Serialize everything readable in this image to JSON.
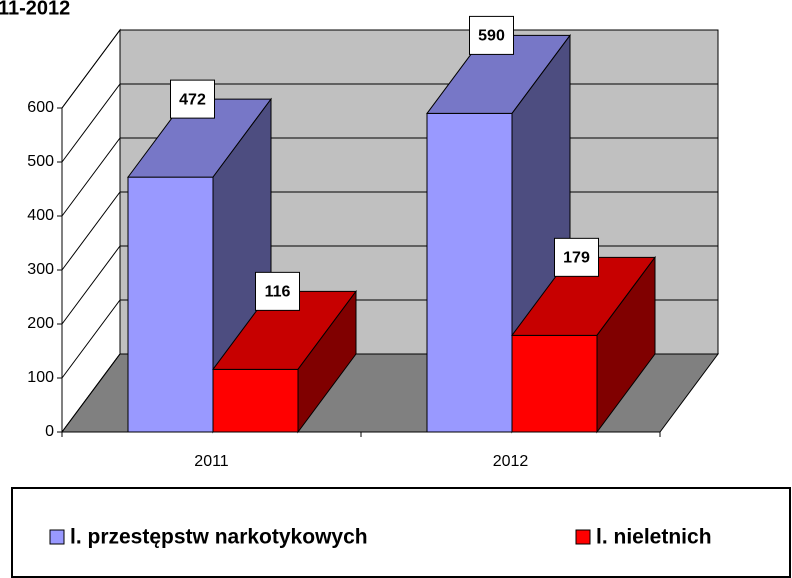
{
  "chart_data": {
    "type": "bar3d",
    "title": "11-2012",
    "categories": [
      "2011",
      "2012"
    ],
    "series": [
      {
        "name": "l. przestępstw narkotykowych",
        "color": "#9999ff",
        "values": [
          472,
          590
        ]
      },
      {
        "name": "l. nieletnich",
        "color": "#ff0000",
        "values": [
          116,
          179
        ]
      }
    ],
    "ylim": [
      0,
      600
    ],
    "yticks": [
      0,
      100,
      200,
      300,
      400,
      500,
      600
    ],
    "grid": true,
    "legend": "bottom"
  }
}
